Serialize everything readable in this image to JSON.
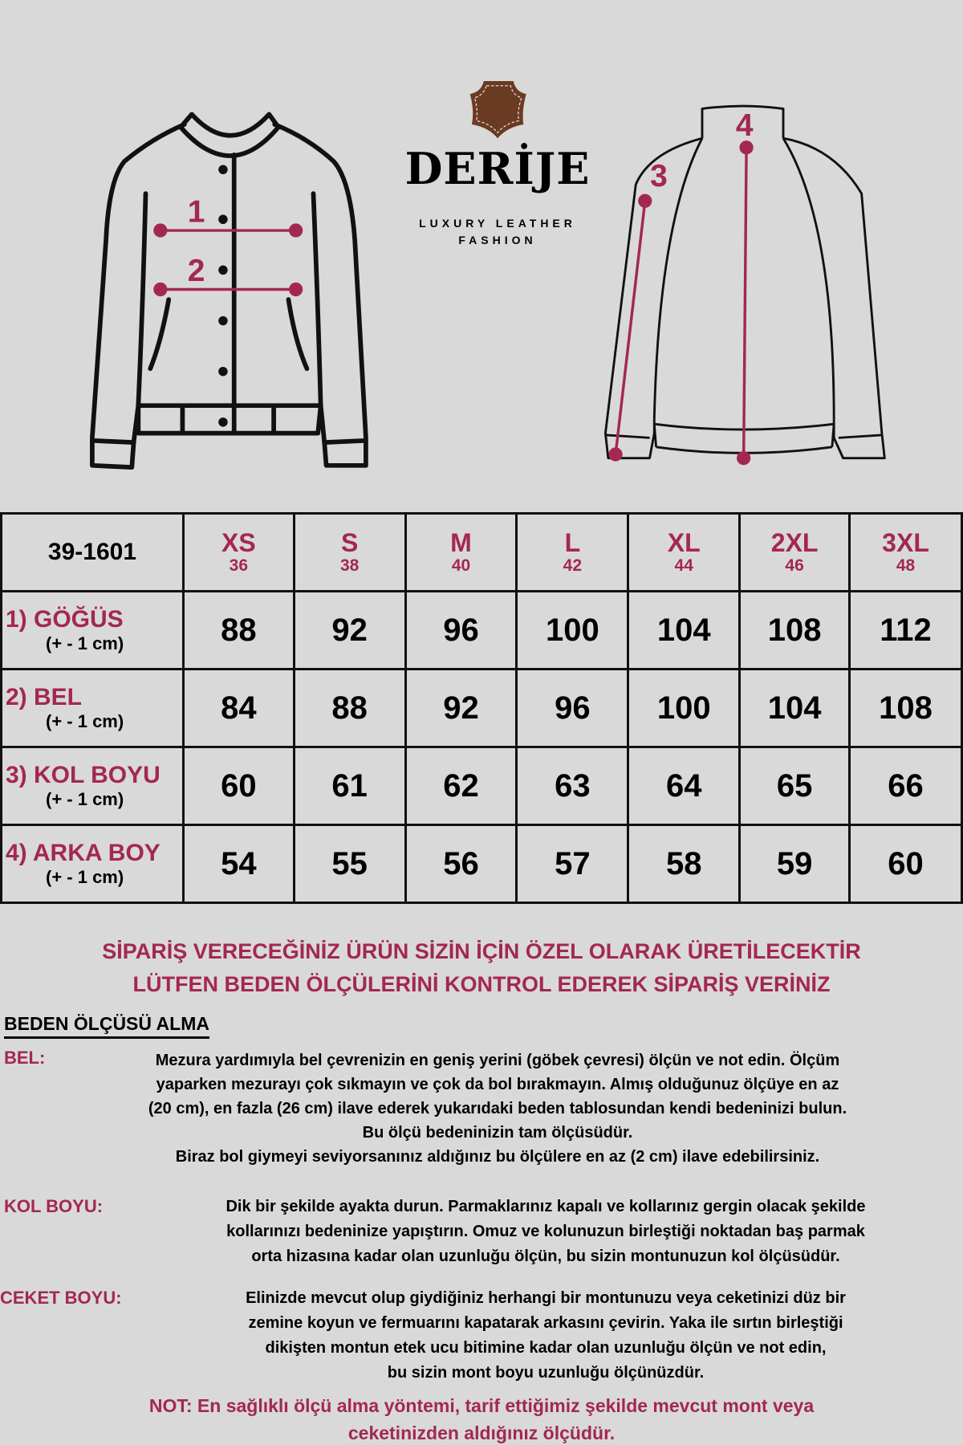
{
  "brand": {
    "name": "DERİJE",
    "tagline_1": "LUXURY LEATHER",
    "tagline_2": "FASHION",
    "logo_color": "#6b3a22"
  },
  "diagram_labels": {
    "front_1": "1",
    "front_2": "2",
    "back_3": "3",
    "back_4": "4"
  },
  "accent_color": "#a3284f",
  "table": {
    "code": "39-1601",
    "sizes": [
      {
        "label": "XS",
        "eu": "36"
      },
      {
        "label": "S",
        "eu": "38"
      },
      {
        "label": "M",
        "eu": "40"
      },
      {
        "label": "L",
        "eu": "42"
      },
      {
        "label": "XL",
        "eu": "44"
      },
      {
        "label": "2XL",
        "eu": "46"
      },
      {
        "label": "3XL",
        "eu": "48"
      }
    ],
    "rows": [
      {
        "name": "1) GÖĞÜS",
        "tolerance": "(+ - 1 cm)",
        "values": [
          "88",
          "92",
          "96",
          "100",
          "104",
          "108",
          "112"
        ]
      },
      {
        "name": "2) BEL",
        "tolerance": "(+ - 1 cm)",
        "values": [
          "84",
          "88",
          "92",
          "96",
          "100",
          "104",
          "108"
        ]
      },
      {
        "name": "3) KOL BOYU",
        "tolerance": "(+ - 1 cm)",
        "values": [
          "60",
          "61",
          "62",
          "63",
          "64",
          "65",
          "66"
        ]
      },
      {
        "name": "4) ARKA BOY",
        "tolerance": "(+ - 1 cm)",
        "values": [
          "54",
          "55",
          "56",
          "57",
          "58",
          "59",
          "60"
        ]
      }
    ]
  },
  "notice": {
    "line1": "SİPARİŞ VERECEĞİNİZ ÜRÜN SİZİN İÇİN ÖZEL OLARAK ÜRETİLECEKTİR",
    "line2": "LÜTFEN BEDEN ÖLÇÜLERİNİ KONTROL EDEREK SİPARİŞ VERİNİZ"
  },
  "guide": {
    "title": "BEDEN ÖLÇÜSÜ ALMA",
    "bel": {
      "label": "BEL:",
      "lines": [
        "Mezura yardımıyla bel çevrenizin en geniş yerini (göbek çevresi) ölçün ve not edin. Ölçüm",
        "yaparken mezurayı çok sıkmayın ve çok da bol bırakmayın. Almış olduğunuz ölçüye en az",
        "(20 cm), en fazla (26 cm) ilave ederek yukarıdaki beden tablosundan kendi bedeninizi bulun.",
        "Bu ölçü bedeninizin tam ölçüsüdür.",
        "Biraz bol giymeyi seviyorsanınız aldığınız bu ölçülere en az (2 cm) ilave edebilirsiniz."
      ]
    },
    "kol": {
      "label": "KOL BOYU:",
      "lines": [
        "Dik bir şekilde ayakta durun. Parmaklarınız kapalı ve kollarınız gergin olacak şekilde",
        "kollarınızı bedeninize yapıştırın. Omuz ve kolunuzun birleştiği noktadan baş parmak",
        "orta hizasına kadar olan uzunluğu ölçün, bu sizin montunuzun kol ölçüsüdür."
      ]
    },
    "ceket": {
      "label": "CEKET BOYU:",
      "lines": [
        "Elinizde mevcut olup giydiğiniz herhangi bir montunuzu veya ceketinizi düz bir",
        "zemine koyun ve fermuarını kapatarak arkasını çevirin. Yaka ile sırtın birleştiği",
        "dikişten montun etek ucu bitimine kadar olan uzunluğu ölçün ve not edin,",
        "bu sizin mont boyu uzunluğu ölçünüzdür."
      ]
    },
    "note": {
      "line1": "NOT: En sağlıklı ölçü alma yöntemi, tarif ettiğimiz şekilde mevcut mont veya",
      "line2": "ceketinizden aldığınız ölçüdür."
    }
  }
}
